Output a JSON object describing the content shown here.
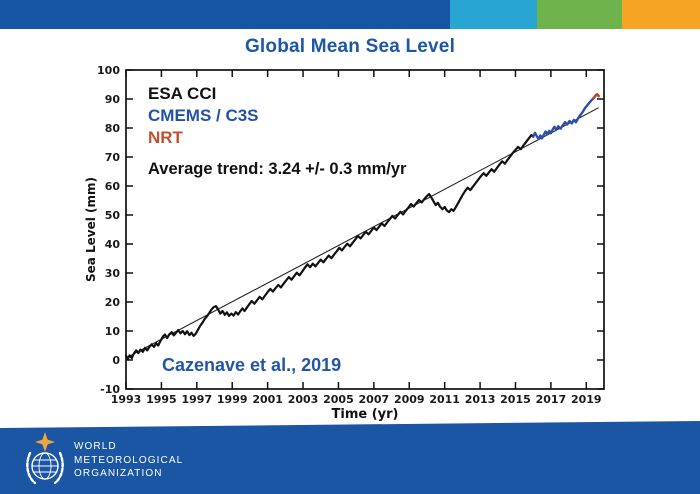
{
  "slide": {
    "title": "Global Mean Sea Level",
    "top_bar_colors": [
      "#1555a2",
      "#29a5d3",
      "#6fb34c",
      "#f6a522"
    ],
    "footer_color": "#1a56a4",
    "title_color": "#1d57a8"
  },
  "legend": {
    "cmems_color": "#2152a8",
    "nrt_color": "#c4502e",
    "citation_color": "#2456a8"
  },
  "footer": {
    "org_line1": "WORLD",
    "org_line2": "METEOROLOGICAL",
    "org_line3": "ORGANIZATION",
    "logo": "wmo-emblem"
  },
  "chart_data": {
    "type": "line",
    "title": "Global Mean Sea Level",
    "xlabel": "Time (yr)",
    "ylabel": "Sea Level (mm)",
    "xlim": [
      1993,
      2020
    ],
    "ylim": [
      -10,
      100
    ],
    "x_ticks": [
      1993,
      1995,
      1997,
      1999,
      2001,
      2003,
      2005,
      2007,
      2009,
      2011,
      2013,
      2015,
      2017,
      2019
    ],
    "y_ticks": [
      -10,
      0,
      10,
      20,
      30,
      40,
      50,
      60,
      70,
      80,
      90,
      100
    ],
    "grid": false,
    "legend_position": "upper-left",
    "annotation": "Cazenave et al., 2019",
    "trend": {
      "label": "Average trend: 3.24 +/- 0.3 mm/yr",
      "x": [
        1993.0,
        2019.7
      ],
      "y": [
        0.7,
        87.0
      ],
      "color": "#222222"
    },
    "series": [
      {
        "name": "ESA CCI",
        "color": "#111111",
        "width": 2.2,
        "points": [
          [
            1993.0,
            1.5
          ],
          [
            1993.1,
            0.3
          ],
          [
            1993.2,
            1.6
          ],
          [
            1993.33,
            0.7
          ],
          [
            1993.45,
            2.3
          ],
          [
            1993.58,
            3.3
          ],
          [
            1993.7,
            2.4
          ],
          [
            1993.82,
            3.6
          ],
          [
            1993.95,
            2.8
          ],
          [
            1994.08,
            4.2
          ],
          [
            1994.2,
            3.3
          ],
          [
            1994.33,
            4.6
          ],
          [
            1994.45,
            5.4
          ],
          [
            1994.58,
            4.5
          ],
          [
            1994.7,
            5.8
          ],
          [
            1994.82,
            5.0
          ],
          [
            1994.95,
            6.6
          ],
          [
            1995.08,
            8.0
          ],
          [
            1995.2,
            8.8
          ],
          [
            1995.33,
            7.6
          ],
          [
            1995.45,
            8.9
          ],
          [
            1995.58,
            9.6
          ],
          [
            1995.7,
            8.5
          ],
          [
            1995.82,
            9.3
          ],
          [
            1995.95,
            10.3
          ],
          [
            1996.08,
            9.2
          ],
          [
            1996.2,
            10.0
          ],
          [
            1996.33,
            8.9
          ],
          [
            1996.45,
            9.9
          ],
          [
            1996.58,
            8.6
          ],
          [
            1996.7,
            9.4
          ],
          [
            1996.82,
            8.3
          ],
          [
            1996.95,
            9.1
          ],
          [
            1997.08,
            10.6
          ],
          [
            1997.2,
            11.9
          ],
          [
            1997.33,
            13.0
          ],
          [
            1997.45,
            14.2
          ],
          [
            1997.58,
            15.1
          ],
          [
            1997.7,
            16.2
          ],
          [
            1997.82,
            17.3
          ],
          [
            1997.95,
            18.2
          ],
          [
            1998.08,
            18.6
          ],
          [
            1998.2,
            17.4
          ],
          [
            1998.33,
            16.0
          ],
          [
            1998.45,
            16.9
          ],
          [
            1998.58,
            15.6
          ],
          [
            1998.7,
            16.4
          ],
          [
            1998.82,
            15.2
          ],
          [
            1998.95,
            16.0
          ],
          [
            1999.08,
            15.3
          ],
          [
            1999.2,
            16.5
          ],
          [
            1999.33,
            15.7
          ],
          [
            1999.45,
            16.8
          ],
          [
            1999.58,
            17.8
          ],
          [
            1999.7,
            16.9
          ],
          [
            1999.82,
            18.0
          ],
          [
            1999.95,
            19.1
          ],
          [
            2000.1,
            20.3
          ],
          [
            2000.25,
            19.4
          ],
          [
            2000.4,
            20.6
          ],
          [
            2000.55,
            21.8
          ],
          [
            2000.7,
            20.9
          ],
          [
            2000.85,
            22.2
          ],
          [
            2001.0,
            23.4
          ],
          [
            2001.15,
            24.5
          ],
          [
            2001.3,
            23.6
          ],
          [
            2001.45,
            24.8
          ],
          [
            2001.6,
            25.9
          ],
          [
            2001.75,
            25.0
          ],
          [
            2001.9,
            26.3
          ],
          [
            2002.05,
            27.5
          ],
          [
            2002.2,
            28.6
          ],
          [
            2002.35,
            27.7
          ],
          [
            2002.5,
            28.9
          ],
          [
            2002.65,
            30.1
          ],
          [
            2002.8,
            29.2
          ],
          [
            2002.95,
            30.5
          ],
          [
            2003.1,
            31.8
          ],
          [
            2003.25,
            33.0
          ],
          [
            2003.4,
            32.0
          ],
          [
            2003.55,
            33.2
          ],
          [
            2003.7,
            32.3
          ],
          [
            2003.85,
            33.5
          ],
          [
            2004.0,
            34.6
          ],
          [
            2004.15,
            33.7
          ],
          [
            2004.3,
            34.9
          ],
          [
            2004.45,
            36.0
          ],
          [
            2004.6,
            35.1
          ],
          [
            2004.75,
            36.3
          ],
          [
            2004.9,
            37.5
          ],
          [
            2005.05,
            38.7
          ],
          [
            2005.2,
            37.8
          ],
          [
            2005.35,
            39.0
          ],
          [
            2005.5,
            40.1
          ],
          [
            2005.65,
            39.2
          ],
          [
            2005.8,
            40.4
          ],
          [
            2005.95,
            41.6
          ],
          [
            2006.1,
            42.8
          ],
          [
            2006.25,
            41.9
          ],
          [
            2006.4,
            43.1
          ],
          [
            2006.55,
            44.2
          ],
          [
            2006.7,
            43.3
          ],
          [
            2006.85,
            44.5
          ],
          [
            2007.0,
            45.7
          ],
          [
            2007.15,
            44.8
          ],
          [
            2007.3,
            46.0
          ],
          [
            2007.45,
            47.1
          ],
          [
            2007.6,
            46.2
          ],
          [
            2007.75,
            47.4
          ],
          [
            2007.9,
            48.6
          ],
          [
            2008.05,
            49.7
          ],
          [
            2008.2,
            48.8
          ],
          [
            2008.35,
            50.0
          ],
          [
            2008.5,
            51.1
          ],
          [
            2008.65,
            50.2
          ],
          [
            2008.8,
            51.4
          ],
          [
            2008.95,
            52.6
          ],
          [
            2009.1,
            53.8
          ],
          [
            2009.25,
            52.9
          ],
          [
            2009.4,
            54.1
          ],
          [
            2009.55,
            55.2
          ],
          [
            2009.7,
            54.3
          ],
          [
            2009.85,
            55.5
          ],
          [
            2010.0,
            56.6
          ],
          [
            2010.12,
            57.2
          ],
          [
            2010.25,
            56.0
          ],
          [
            2010.38,
            54.6
          ],
          [
            2010.5,
            53.4
          ],
          [
            2010.62,
            54.2
          ],
          [
            2010.75,
            52.8
          ],
          [
            2010.88,
            52.0
          ],
          [
            2011.0,
            52.8
          ],
          [
            2011.12,
            51.6
          ],
          [
            2011.25,
            51.0
          ],
          [
            2011.38,
            52.0
          ],
          [
            2011.5,
            51.4
          ],
          [
            2011.62,
            52.6
          ],
          [
            2011.75,
            54.0
          ],
          [
            2011.88,
            55.4
          ],
          [
            2012.0,
            56.8
          ],
          [
            2012.15,
            58.2
          ],
          [
            2012.3,
            59.4
          ],
          [
            2012.45,
            58.6
          ],
          [
            2012.6,
            59.8
          ],
          [
            2012.75,
            61.0
          ],
          [
            2012.9,
            62.2
          ],
          [
            2013.05,
            63.4
          ],
          [
            2013.2,
            64.4
          ],
          [
            2013.35,
            63.5
          ],
          [
            2013.5,
            64.7
          ],
          [
            2013.65,
            65.8
          ],
          [
            2013.8,
            64.9
          ],
          [
            2013.95,
            66.2
          ],
          [
            2014.1,
            67.4
          ],
          [
            2014.25,
            68.5
          ],
          [
            2014.4,
            67.7
          ],
          [
            2014.55,
            69.0
          ],
          [
            2014.7,
            70.2
          ],
          [
            2014.85,
            71.4
          ],
          [
            2015.0,
            72.5
          ],
          [
            2015.15,
            73.5
          ],
          [
            2015.3,
            72.7
          ],
          [
            2015.45,
            74.0
          ],
          [
            2015.6,
            75.2
          ],
          [
            2015.75,
            76.4
          ],
          [
            2015.9,
            77.6
          ],
          [
            2016.0,
            77.0
          ]
        ]
      },
      {
        "name": "CMEMS / C3S",
        "color": "#2a4fa5",
        "width": 2.4,
        "points": [
          [
            2016.0,
            77.0
          ],
          [
            2016.1,
            78.3
          ],
          [
            2016.2,
            77.2
          ],
          [
            2016.3,
            76.2
          ],
          [
            2016.4,
            77.4
          ],
          [
            2016.5,
            76.4
          ],
          [
            2016.6,
            77.7
          ],
          [
            2016.7,
            78.8
          ],
          [
            2016.8,
            77.8
          ],
          [
            2016.9,
            79.0
          ],
          [
            2017.0,
            78.2
          ],
          [
            2017.1,
            79.5
          ],
          [
            2017.2,
            80.4
          ],
          [
            2017.3,
            79.4
          ],
          [
            2017.42,
            80.6
          ],
          [
            2017.55,
            79.8
          ],
          [
            2017.68,
            81.0
          ],
          [
            2017.8,
            82.0
          ],
          [
            2017.92,
            81.2
          ],
          [
            2018.05,
            82.4
          ],
          [
            2018.18,
            81.6
          ],
          [
            2018.3,
            82.8
          ],
          [
            2018.42,
            82.0
          ],
          [
            2018.55,
            83.4
          ],
          [
            2018.68,
            84.6
          ],
          [
            2018.8,
            85.6
          ],
          [
            2018.92,
            86.8
          ],
          [
            2019.05,
            87.8
          ],
          [
            2019.18,
            88.8
          ],
          [
            2019.3,
            89.6
          ],
          [
            2019.42,
            90.3
          ]
        ]
      },
      {
        "name": "NRT",
        "color": "#c0442a",
        "width": 2.6,
        "points": [
          [
            2019.42,
            90.3
          ],
          [
            2019.52,
            91.2
          ],
          [
            2019.62,
            91.6
          ],
          [
            2019.7,
            91.0
          ]
        ]
      }
    ]
  }
}
